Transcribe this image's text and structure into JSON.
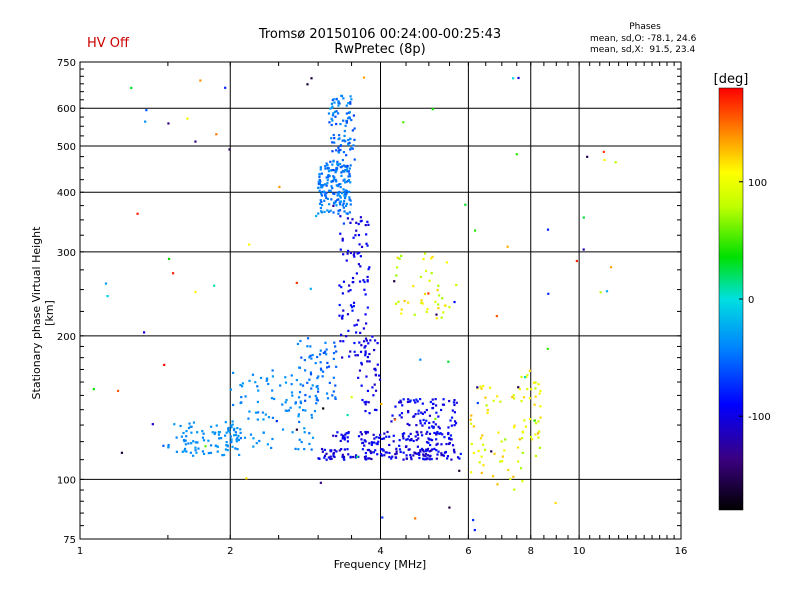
{
  "header": {
    "title_line1": "Tromsø 20150106 00:24:00-00:25:43",
    "title_line2": "RwPretec (8p)",
    "hv_status": "HV Off",
    "phases_title": "Phases",
    "phases_line1": "mean, sd,O: -78.1, 24.6",
    "phases_line2": "mean, sd,X:  91.5, 23.4"
  },
  "colorbar": {
    "unit": "[deg]",
    "range": [
      -180,
      180
    ],
    "ticks": [
      100,
      0,
      -100
    ],
    "tick_labels": [
      "100",
      "0",
      "-100"
    ]
  },
  "chart_data": {
    "type": "scatter",
    "title": "Tromsø 20150106 00:24:00-00:25:43",
    "subtitle": "RwPretec (8p)",
    "xlabel": "Frequency [MHz]",
    "ylabel": "Stationary phase Virtual Height [km]",
    "xscale": "log",
    "yscale": "log",
    "xlim": [
      1,
      16
    ],
    "ylim": [
      75,
      750
    ],
    "xticks": [
      1,
      2,
      4,
      6,
      8,
      10,
      16
    ],
    "xtick_labels": [
      "1",
      "2",
      "4",
      "6",
      "8",
      "10",
      "16"
    ],
    "yticks": [
      75,
      100,
      200,
      300,
      400,
      500,
      600,
      750
    ],
    "ytick_labels": [
      "75",
      "100",
      "200",
      "300",
      "400",
      "500",
      "600",
      "750"
    ],
    "grid": true,
    "color_variable": "phase [deg]",
    "clusters": [
      {
        "x": [
          1.5,
          2.1
        ],
        "y": [
          112,
          132
        ],
        "phase": [
          -30,
          -45
        ],
        "n": 90
      },
      {
        "x": [
          2.0,
          3.0
        ],
        "y": [
          115,
          170
        ],
        "phase": [
          -30,
          -50
        ],
        "n": 110
      },
      {
        "x": [
          2.7,
          3.3
        ],
        "y": [
          145,
          200
        ],
        "phase": [
          -40,
          -65
        ],
        "n": 60
      },
      {
        "x": [
          3.0,
          3.5
        ],
        "y": [
          360,
          460
        ],
        "phase": [
          -35,
          -60
        ],
        "n": 160
      },
      {
        "x": [
          3.15,
          3.55
        ],
        "y": [
          440,
          640
        ],
        "phase": [
          -30,
          -70
        ],
        "n": 110
      },
      {
        "x": [
          3.3,
          3.8
        ],
        "y": [
          180,
          360
        ],
        "phase": [
          -80,
          -115
        ],
        "n": 100
      },
      {
        "x": [
          3.0,
          5.8
        ],
        "y": [
          110,
          116
        ],
        "phase": [
          -80,
          -120
        ],
        "n": 140
      },
      {
        "x": [
          3.2,
          5.6
        ],
        "y": [
          117,
          126
        ],
        "phase": [
          -80,
          -115
        ],
        "n": 110
      },
      {
        "x": [
          4.2,
          5.7
        ],
        "y": [
          128,
          148
        ],
        "phase": [
          -80,
          -110
        ],
        "n": 80
      },
      {
        "x": [
          3.6,
          4.0
        ],
        "y": [
          135,
          200
        ],
        "phase": [
          -85,
          -115
        ],
        "n": 40
      },
      {
        "x": [
          4.3,
          5.5
        ],
        "y": [
          215,
          300
        ],
        "phase": [
          70,
          125
        ],
        "n": 40
      },
      {
        "x": [
          6.0,
          8.5
        ],
        "y": [
          95,
          160
        ],
        "phase": [
          70,
          130
        ],
        "n": 60
      },
      {
        "x": [
          7.6,
          8.4
        ],
        "y": [
          120,
          175
        ],
        "phase": [
          80,
          120
        ],
        "n": 30
      },
      {
        "x": [
          1.0,
          12.0
        ],
        "y": [
          78,
          700
        ],
        "phase": [
          -180,
          180
        ],
        "n": 90
      }
    ]
  }
}
